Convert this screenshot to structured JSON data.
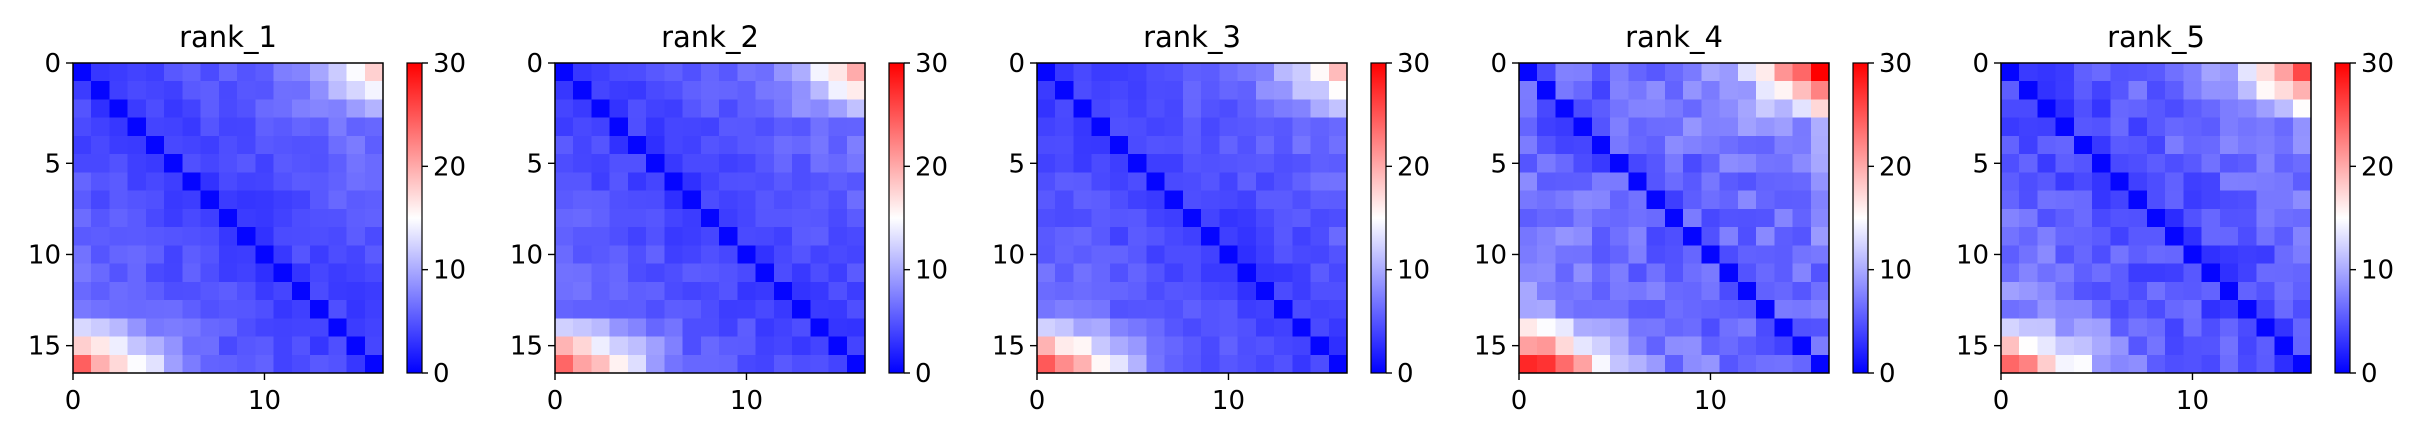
{
  "chart_data": {
    "type": "heatmap",
    "colormap": "bwr",
    "colormap_colors": [
      "#0000ff",
      "#ffffff",
      "#ff0000"
    ],
    "vmin": 0,
    "vmax": 30,
    "matrix_size": 17,
    "axis_frame_color": "#000000",
    "panels": [
      {
        "title": "rank_1",
        "xticks": [
          "0",
          "10"
        ],
        "yticks": [
          "0",
          "5",
          "10",
          "15"
        ],
        "colorbar_ticks": [
          "0",
          "10",
          "20",
          "30"
        ],
        "xlim": [
          0,
          17
        ],
        "ylim": [
          17,
          0
        ],
        "pattern": {
          "base": 3.5,
          "slope": 0.25,
          "corner": 10,
          "bottom": 16,
          "noise": 1.0,
          "seed": 11
        }
      },
      {
        "title": "rank_2",
        "xticks": [
          "0",
          "10"
        ],
        "yticks": [
          "0",
          "5",
          "10",
          "15"
        ],
        "colorbar_ticks": [
          "0",
          "10",
          "20",
          "30"
        ],
        "xlim": [
          0,
          17
        ],
        "ylim": [
          17,
          0
        ],
        "pattern": {
          "base": 3.5,
          "slope": 0.25,
          "corner": 13,
          "bottom": 17,
          "noise": 1.0,
          "seed": 23
        }
      },
      {
        "title": "rank_3",
        "xticks": [
          "0",
          "10"
        ],
        "yticks": [
          "0",
          "5",
          "10",
          "15"
        ],
        "colorbar_ticks": [
          "0",
          "10",
          "20",
          "30"
        ],
        "xlim": [
          0,
          17
        ],
        "ylim": [
          17,
          0
        ],
        "pattern": {
          "base": 3.5,
          "slope": 0.25,
          "corner": 11,
          "bottom": 18,
          "noise": 1.0,
          "seed": 37
        }
      },
      {
        "title": "rank_4",
        "xticks": [
          "0",
          "10"
        ],
        "yticks": [
          "0",
          "5",
          "10",
          "15"
        ],
        "colorbar_ticks": [
          "0",
          "10",
          "20",
          "30"
        ],
        "xlim": [
          0,
          17
        ],
        "ylim": [
          17,
          0
        ],
        "pattern": {
          "base": 5,
          "slope": 0.3,
          "corner": 20,
          "bottom": 19,
          "noise": 2.0,
          "seed": 41
        }
      },
      {
        "title": "rank_5",
        "xticks": [
          "0",
          "10"
        ],
        "yticks": [
          "0",
          "5",
          "10",
          "15"
        ],
        "colorbar_ticks": [
          "0",
          "10",
          "20",
          "30"
        ],
        "xlim": [
          0,
          17
        ],
        "ylim": [
          17,
          0
        ],
        "pattern": {
          "base": 4,
          "slope": 0.3,
          "corner": 18,
          "bottom": 15,
          "noise": 1.8,
          "seed": 53
        }
      }
    ]
  }
}
